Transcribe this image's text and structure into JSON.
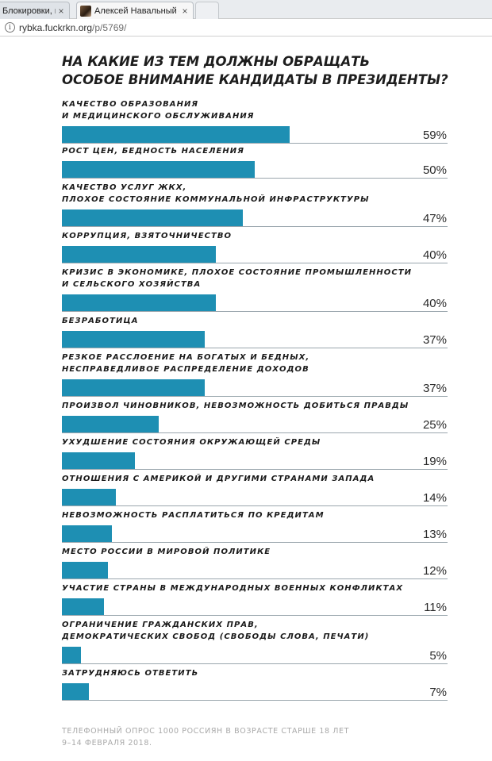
{
  "browser": {
    "tabs": [
      {
        "title": "Блокировки, наб",
        "close": "×",
        "active": false
      },
      {
        "title": "Алексей Навальный — Ал",
        "close": "×",
        "active": true
      }
    ],
    "url_host": "rybka.fuckrkn.org",
    "url_path": "/p/5769/"
  },
  "chart_data": {
    "type": "bar",
    "title_lines": [
      "НА КАКИЕ ИЗ ТЕМ ДОЛЖНЫ ОБРАЩАТЬ",
      "ОСОБОЕ ВНИМАНИЕ КАНДИДАТЫ В ПРЕЗИДЕНТЫ?"
    ],
    "max": 100,
    "color": "#1e8fb3",
    "items": [
      {
        "label_lines": [
          "КАЧЕСТВО ОБРАЗОВАНИЯ",
          "И МЕДИЦИНСКОГО ОБСЛУЖИВАНИЯ"
        ],
        "value": 59,
        "value_label": "59%"
      },
      {
        "label_lines": [
          "РОСТ ЦЕН, БЕДНОСТЬ НАСЕЛЕНИЯ"
        ],
        "value": 50,
        "value_label": "50%"
      },
      {
        "label_lines": [
          "КАЧЕСТВО УСЛУГ ЖКХ,",
          "ПЛОХОЕ СОСТОЯНИЕ КОММУНАЛЬНОЙ ИНФРАСТРУКТУРЫ"
        ],
        "value": 47,
        "value_label": "47%"
      },
      {
        "label_lines": [
          "КОРРУПЦИЯ, ВЗЯТОЧНИЧЕСТВО"
        ],
        "value": 40,
        "value_label": "40%"
      },
      {
        "label_lines": [
          "КРИЗИС В ЭКОНОМИКЕ, ПЛОХОЕ СОСТОЯНИЕ ПРОМЫШЛЕННОСТИ",
          "И СЕЛЬСКОГО ХОЗЯЙСТВА"
        ],
        "value": 40,
        "value_label": "40%"
      },
      {
        "label_lines": [
          "БЕЗРАБОТИЦА"
        ],
        "value": 37,
        "value_label": "37%"
      },
      {
        "label_lines": [
          "РЕЗКОЕ РАССЛОЕНИЕ НА БОГАТЫХ И БЕДНЫХ,",
          "НЕСПРАВЕДЛИВОЕ РАСПРЕДЕЛЕНИЕ ДОХОДОВ"
        ],
        "value": 37,
        "value_label": "37%"
      },
      {
        "label_lines": [
          "ПРОИЗВОЛ ЧИНОВНИКОВ, НЕВОЗМОЖНОСТЬ ДОБИТЬСЯ ПРАВДЫ"
        ],
        "value": 25,
        "value_label": "25%"
      },
      {
        "label_lines": [
          "УХУДШЕНИЕ СОСТОЯНИЯ ОКРУЖАЮЩЕЙ СРЕДЫ"
        ],
        "value": 19,
        "value_label": "19%"
      },
      {
        "label_lines": [
          "ОТНОШЕНИЯ С АМЕРИКОЙ И ДРУГИМИ СТРАНАМИ ЗАПАДА"
        ],
        "value": 14,
        "value_label": "14%"
      },
      {
        "label_lines": [
          "НЕВОЗМОЖНОСТЬ РАСПЛАТИТЬСЯ ПО КРЕДИТАМ"
        ],
        "value": 13,
        "value_label": "13%"
      },
      {
        "label_lines": [
          "МЕСТО РОССИИ В МИРОВОЙ ПОЛИТИКЕ"
        ],
        "value": 12,
        "value_label": "12%"
      },
      {
        "label_lines": [
          "УЧАСТИЕ СТРАНЫ В МЕЖДУНАРОДНЫХ ВОЕННЫХ КОНФЛИКТАХ"
        ],
        "value": 11,
        "value_label": "11%"
      },
      {
        "label_lines": [
          "ОГРАНИЧЕНИЕ ГРАЖДАНСКИХ ПРАВ,",
          "ДЕМОКРАТИЧЕСКИХ СВОБОД (СВОБОДЫ СЛОВА, ПЕЧАТИ)"
        ],
        "value": 5,
        "value_label": "5%"
      },
      {
        "label_lines": [
          "ЗАТРУДНЯЮСЬ ОТВЕТИТЬ"
        ],
        "value": 7,
        "value_label": "7%"
      }
    ],
    "footnote_lines": [
      "ТЕЛЕФОННЫЙ ОПРОС 1000 РОССИЯН В ВОЗРАСТЕ СТАРШЕ 18 ЛЕТ",
      "9–14 ФЕВРАЛЯ 2018."
    ]
  }
}
